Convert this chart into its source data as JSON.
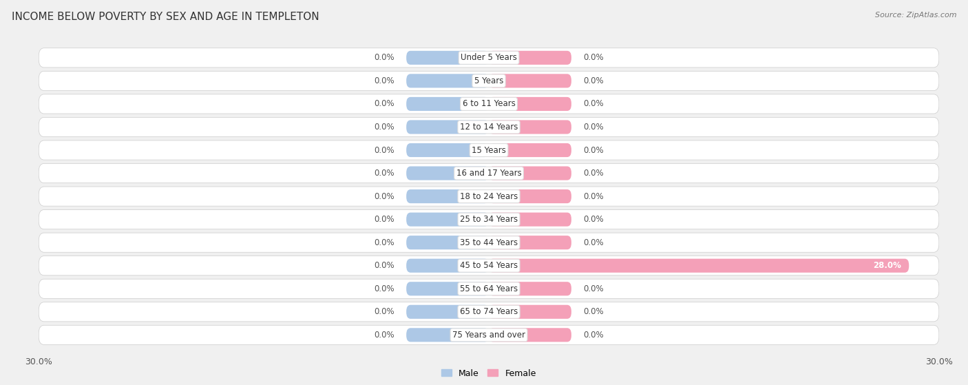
{
  "title": "INCOME BELOW POVERTY BY SEX AND AGE IN TEMPLETON",
  "source": "Source: ZipAtlas.com",
  "categories": [
    "Under 5 Years",
    "5 Years",
    "6 to 11 Years",
    "12 to 14 Years",
    "15 Years",
    "16 and 17 Years",
    "18 to 24 Years",
    "25 to 34 Years",
    "35 to 44 Years",
    "45 to 54 Years",
    "55 to 64 Years",
    "65 to 74 Years",
    "75 Years and over"
  ],
  "male_values": [
    0.0,
    0.0,
    0.0,
    0.0,
    0.0,
    0.0,
    0.0,
    0.0,
    0.0,
    0.0,
    0.0,
    0.0,
    0.0
  ],
  "female_values": [
    0.0,
    0.0,
    0.0,
    0.0,
    0.0,
    0.0,
    0.0,
    0.0,
    0.0,
    28.0,
    0.0,
    0.0,
    0.0
  ],
  "male_color": "#adc8e6",
  "female_color": "#f4a0b8",
  "male_label": "Male",
  "female_label": "Female",
  "xlim": 30.0,
  "stub_size": 5.5,
  "bar_height": 0.6,
  "fig_bg": "#f0f0f0",
  "row_bg": "#ffffff",
  "title_fontsize": 11,
  "label_fontsize": 8.5,
  "tick_fontsize": 9,
  "source_fontsize": 8
}
